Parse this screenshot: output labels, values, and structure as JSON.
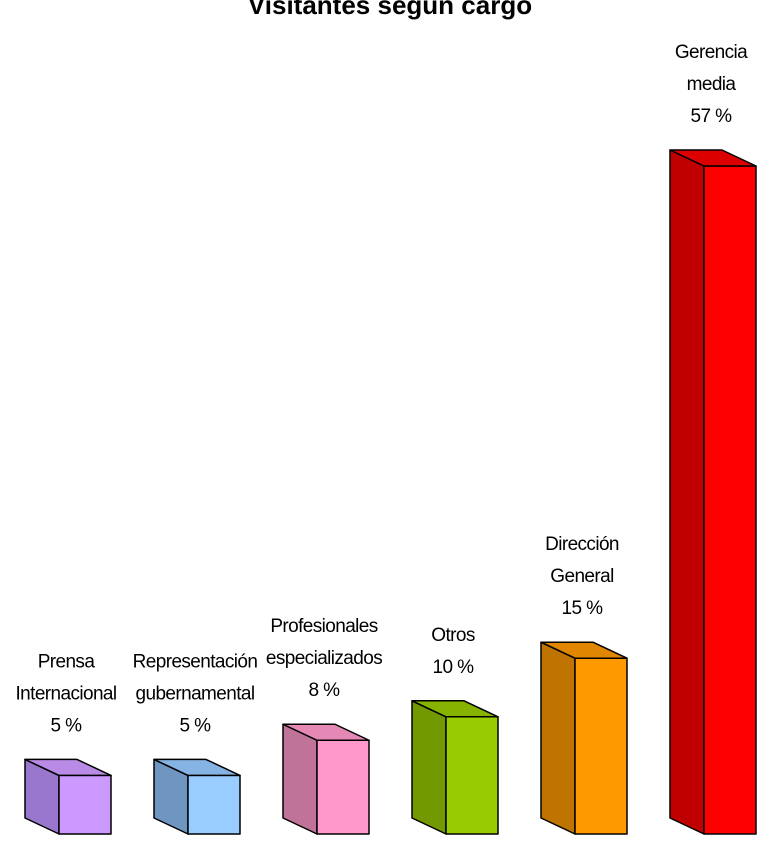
{
  "chart_data": {
    "type": "bar",
    "title": "Visitantes según cargo",
    "categories": [
      [
        "Prensa",
        "Internacional"
      ],
      [
        "Representación",
        "gubernamental"
      ],
      [
        "Profesionales",
        "especializados"
      ],
      [
        "Otros"
      ],
      [
        "Dirección",
        "General"
      ],
      [
        "Gerencia",
        "media"
      ]
    ],
    "values": [
      5,
      5,
      8,
      10,
      15,
      57
    ],
    "value_labels": [
      "5 %",
      "5 %",
      "8 %",
      "10 %",
      "15 %",
      "57 %"
    ],
    "unit": "%",
    "colors": [
      {
        "front": "#cc99ff",
        "side": "#9977cc",
        "top": "#b98be6"
      },
      {
        "front": "#99ccff",
        "side": "#6f96c0",
        "top": "#85b3e3"
      },
      {
        "front": "#ff99cc",
        "side": "#c07399",
        "top": "#e688b6"
      },
      {
        "front": "#99cc00",
        "side": "#739900",
        "top": "#85b300"
      },
      {
        "front": "#ff9900",
        "side": "#bf7300",
        "top": "#e08600"
      },
      {
        "front": "#ff0000",
        "side": "#c00000",
        "top": "#dd0000"
      }
    ],
    "ylim": [
      0,
      57
    ],
    "grid": false,
    "legend": "none"
  }
}
